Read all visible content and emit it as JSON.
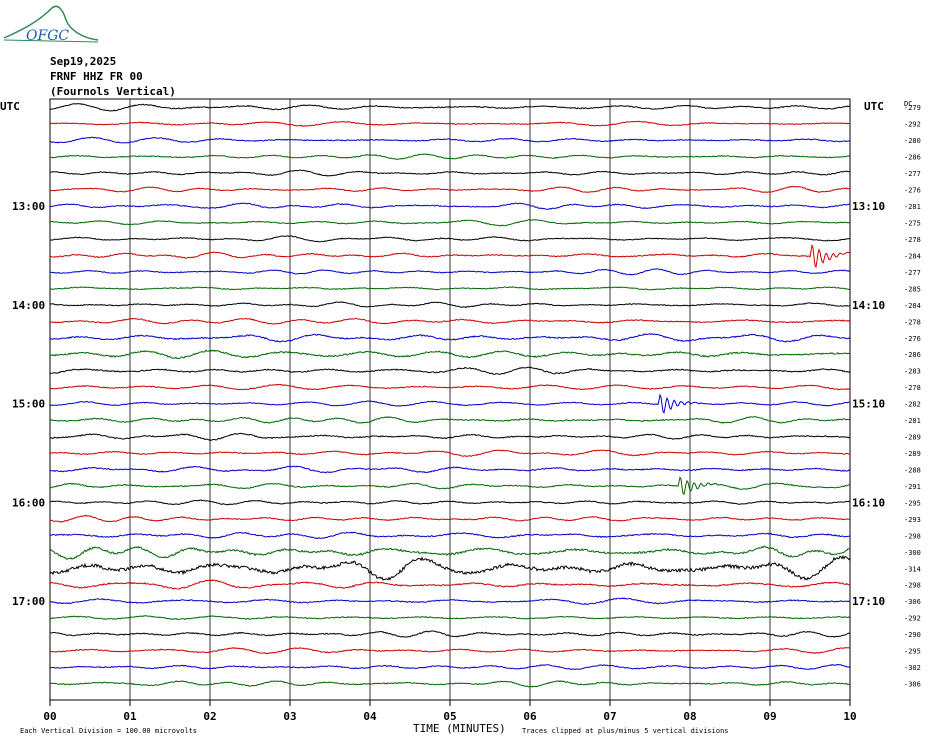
{
  "logo_text": "OFGC",
  "header": {
    "date": "Sep19,2025",
    "station": "FRNF HHZ FR 00",
    "location": "(Fournols Vertical)"
  },
  "utc_label_left": "UTC",
  "utc_label_right": "UTC",
  "dc_label": "DC",
  "footer": {
    "scale": "Each Vertical Division =  100.00 microvolts",
    "xlabel": "TIME (MINUTES)",
    "clip_note": "Traces clipped at plus/minus 5 vertical divisions"
  },
  "colors": {
    "trace_cycle": [
      "#000000",
      "#cc0000",
      "#0000cc",
      "#006600"
    ],
    "grid": "#000000",
    "logo": "#2e8b57"
  },
  "chart_data": {
    "type": "line",
    "title": "",
    "xlabel": "TIME (MINUTES)",
    "ylabel": "",
    "x_ticks": [
      "00",
      "01",
      "02",
      "03",
      "04",
      "05",
      "06",
      "07",
      "08",
      "09",
      "10"
    ],
    "xlim": [
      0,
      10
    ],
    "grid": true,
    "left_hour_labels": [
      {
        "row": 6,
        "label": "13:00"
      },
      {
        "row": 12,
        "label": "14:00"
      },
      {
        "row": 18,
        "label": "15:00"
      },
      {
        "row": 24,
        "label": "16:00"
      },
      {
        "row": 30,
        "label": "17:00"
      }
    ],
    "right_hour_labels": [
      {
        "row": 6,
        "label": "13:10"
      },
      {
        "row": 12,
        "label": "14:10"
      },
      {
        "row": 18,
        "label": "15:10"
      },
      {
        "row": 24,
        "label": "16:10"
      },
      {
        "row": 30,
        "label": "17:10"
      }
    ],
    "dc_offsets": [
      -279,
      -292,
      -280,
      -286,
      -277,
      -276,
      -281,
      -275,
      -278,
      -284,
      -277,
      -285,
      -284,
      -278,
      -276,
      -286,
      -283,
      -278,
      -282,
      -281,
      -289,
      -289,
      -288,
      -291,
      -295,
      -293,
      -298,
      -300,
      -314,
      -298,
      -306,
      -292,
      -290,
      -295,
      -302,
      -306
    ],
    "traces": {
      "count": 36,
      "minutes_per_row": 10,
      "amplitude_divisions": [
        0.45,
        0.4,
        0.45,
        0.4,
        0.4,
        0.4,
        0.45,
        0.4,
        0.4,
        0.45,
        0.4,
        0.4,
        0.4,
        0.45,
        0.6,
        0.7,
        0.55,
        0.45,
        0.4,
        0.5,
        0.5,
        0.45,
        0.5,
        0.5,
        0.45,
        0.45,
        0.55,
        0.9,
        1.6,
        0.6,
        0.5,
        0.45,
        0.5,
        0.45,
        0.45,
        0.45
      ],
      "events": [
        {
          "row": 9,
          "minute": 9.55,
          "amplitude_divisions": 1.4
        },
        {
          "row": 18,
          "minute": 7.65,
          "amplitude_divisions": 1.2
        },
        {
          "row": 23,
          "minute": 7.9,
          "amplitude_divisions": 1.1
        }
      ]
    }
  }
}
